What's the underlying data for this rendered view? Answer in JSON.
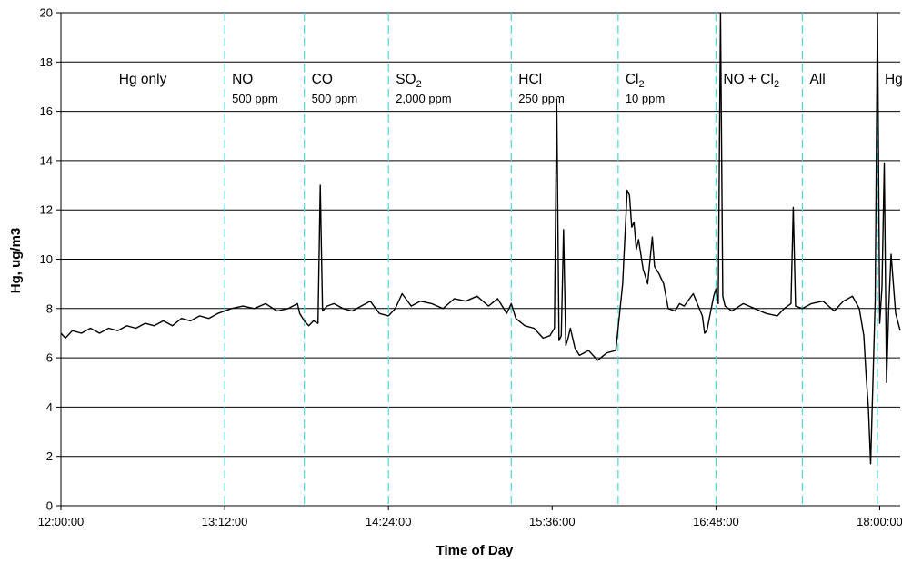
{
  "chart_data": {
    "type": "line",
    "title": "",
    "xlabel": "Time of Day",
    "ylabel": "Hg, ug/m3",
    "ylim": [
      0,
      20
    ],
    "yticks": [
      0,
      2,
      4,
      6,
      8,
      10,
      12,
      14,
      16,
      18,
      20
    ],
    "xlim": [
      "12:00:00",
      "18:09:00"
    ],
    "xticks": [
      "12:00:00",
      "13:12:00",
      "14:24:00",
      "15:36:00",
      "16:48:00",
      "18:00:00"
    ],
    "grid": "horizontal",
    "legend": "none",
    "colors": {
      "line": "#000000",
      "phase_divider": "#4fd6d6",
      "grid": "#000000"
    },
    "phase_dividers": [
      "13:12",
      "13:47",
      "14:24",
      "15:18",
      "16:05",
      "16:48",
      "17:26",
      "17:59"
    ],
    "phases": [
      {
        "name": "Hg only",
        "sub": ""
      },
      {
        "name": "NO",
        "sub": "500 ppm"
      },
      {
        "name": "CO",
        "sub": "500 ppm"
      },
      {
        "name": "SO",
        "name_subscript": "2",
        "sub": "2,000 ppm"
      },
      {
        "name": "HCl",
        "sub": "250 ppm"
      },
      {
        "name": "Cl",
        "name_subscript": "2",
        "sub": "10 ppm"
      },
      {
        "name": "NO + Cl",
        "name_subscript": "2",
        "sub": ""
      },
      {
        "name": "All",
        "sub": ""
      },
      {
        "name": "Hg only",
        "sub": ""
      }
    ],
    "series": [
      {
        "x": [
          "12:00",
          "12:02",
          "12:05",
          "12:09",
          "12:13",
          "12:17",
          "12:21",
          "12:25",
          "12:29",
          "12:33",
          "12:37",
          "12:41",
          "12:45",
          "12:49",
          "12:53",
          "12:57",
          "13:01",
          "13:05",
          "13:09",
          "13:12",
          "13:15",
          "13:20",
          "13:25",
          "13:30",
          "13:35",
          "13:40",
          "13:44",
          "13:45",
          "13:47",
          "13:49",
          "13:51",
          "13:53",
          "13:54",
          "13:55",
          "13:57",
          "14:00",
          "14:04",
          "14:08",
          "14:12",
          "14:16",
          "14:20",
          "14:24",
          "14:27",
          "14:30",
          "14:34",
          "14:38",
          "14:43",
          "14:48",
          "14:53",
          "14:58",
          "15:03",
          "15:08",
          "15:12",
          "15:16",
          "15:18",
          "15:20",
          "15:24",
          "15:28",
          "15:32",
          "15:35",
          "15:37",
          "15:38",
          "15:39",
          "15:40",
          "15:41",
          "15:42",
          "15:43",
          "15:44",
          "15:46",
          "15:48",
          "15:52",
          "15:56",
          "16:00",
          "16:04",
          "16:05",
          "16:07",
          "16:09",
          "16:10",
          "16:11",
          "16:12",
          "16:13",
          "16:14",
          "16:16",
          "16:18",
          "16:20",
          "16:21",
          "16:23",
          "16:25",
          "16:27",
          "16:30",
          "16:32",
          "16:34",
          "16:38",
          "16:42",
          "16:43",
          "16:44",
          "16:47",
          "16:48",
          "16:49",
          "16:50",
          "16:51",
          "16:52",
          "16:55",
          "17:00",
          "17:05",
          "17:10",
          "17:15",
          "17:18",
          "17:21",
          "17:22",
          "17:23",
          "17:26",
          "17:30",
          "17:35",
          "17:40",
          "17:44",
          "17:48",
          "17:51",
          "17:53",
          "17:54",
          "17:55",
          "17:56",
          "17:58",
          "17:59",
          "18:00",
          "18:01",
          "18:02",
          "18:03",
          "18:04",
          "18:05",
          "18:07",
          "18:09"
        ],
        "y": [
          7.0,
          6.8,
          7.1,
          7.0,
          7.2,
          7.0,
          7.2,
          7.1,
          7.3,
          7.2,
          7.4,
          7.3,
          7.5,
          7.3,
          7.6,
          7.5,
          7.7,
          7.6,
          7.8,
          7.9,
          8.0,
          8.1,
          8.0,
          8.2,
          7.9,
          8.0,
          8.2,
          7.8,
          7.5,
          7.3,
          7.5,
          7.4,
          13.0,
          7.9,
          8.1,
          8.2,
          8.0,
          7.9,
          8.1,
          8.3,
          7.8,
          7.7,
          8.0,
          8.6,
          8.1,
          8.3,
          8.2,
          8.0,
          8.4,
          8.3,
          8.5,
          8.1,
          8.4,
          7.8,
          8.2,
          7.6,
          7.3,
          7.2,
          6.8,
          6.9,
          7.2,
          16.5,
          6.7,
          6.9,
          11.2,
          6.5,
          6.8,
          7.2,
          6.4,
          6.1,
          6.3,
          5.9,
          6.2,
          6.3,
          7.2,
          9.0,
          12.8,
          12.6,
          11.3,
          11.5,
          10.4,
          10.8,
          9.6,
          9.0,
          10.9,
          9.7,
          9.4,
          9.0,
          8.0,
          7.9,
          8.2,
          8.1,
          8.6,
          7.7,
          7.0,
          7.1,
          8.5,
          8.8,
          8.2,
          20.0,
          8.5,
          8.1,
          7.9,
          8.2,
          8.0,
          7.8,
          7.7,
          8.0,
          8.2,
          12.1,
          8.1,
          8.0,
          8.2,
          8.3,
          7.9,
          8.3,
          8.5,
          8.0,
          6.9,
          5.3,
          4.0,
          1.7,
          8.3,
          20.0,
          7.4,
          8.9,
          13.9,
          5.0,
          8.1,
          10.2,
          7.8,
          7.1
        ]
      }
    ]
  }
}
